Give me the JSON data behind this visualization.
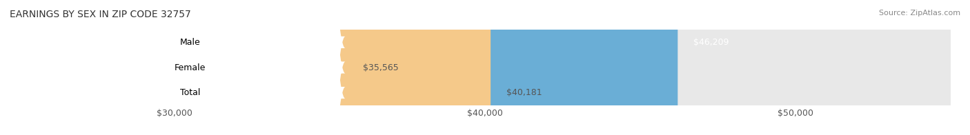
{
  "title": "EARNINGS BY SEX IN ZIP CODE 32757",
  "source": "Source: ZipAtlas.com",
  "categories": [
    "Male",
    "Female",
    "Total"
  ],
  "values": [
    46209,
    35565,
    40181
  ],
  "bar_colors": [
    "#6aaed6",
    "#f4a8b8",
    "#f5c98a"
  ],
  "label_colors": [
    "#ffffff",
    "#555555",
    "#555555"
  ],
  "label_values": [
    "$46,209",
    "$35,565",
    "$40,181"
  ],
  "x_min": 25000,
  "x_max": 55000,
  "x_ticks": [
    30000,
    40000,
    50000
  ],
  "x_tick_labels": [
    "$30,000",
    "$40,000",
    "$50,000"
  ],
  "bg_color": "#ffffff",
  "bar_bg_color": "#e8e8e8",
  "bar_height": 0.55,
  "title_fontsize": 10,
  "label_fontsize": 9,
  "tick_fontsize": 9,
  "source_fontsize": 8
}
